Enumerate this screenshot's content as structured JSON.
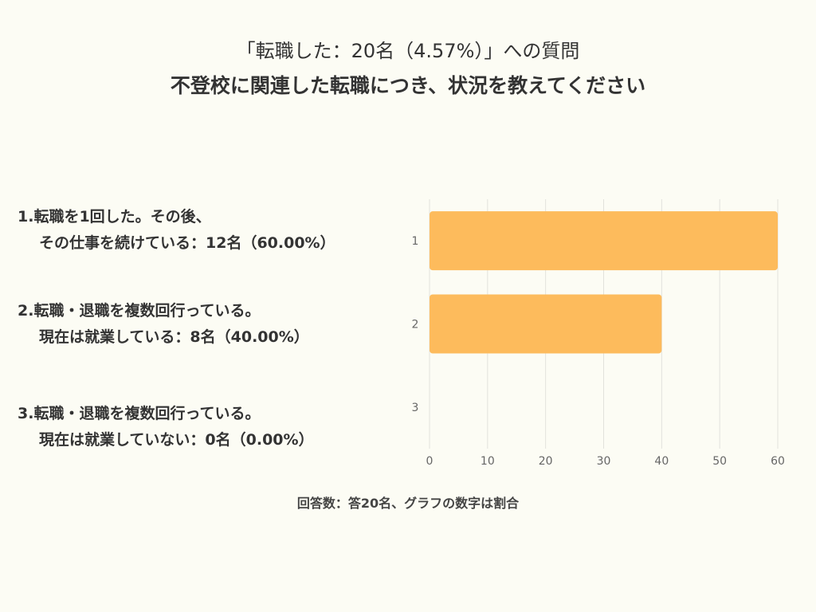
{
  "header": {
    "title": "「転職した：20名（4.57%）」への質問",
    "subtitle": "不登校に関連した転職につき、状況を教えてください"
  },
  "categories": [
    {
      "line1": "1.転職を1回した。その後、",
      "line2": "その仕事を続けている：12名（60.00%）"
    },
    {
      "line1": "2.転職・退職を複数回行っている。",
      "line2": "現在は就業している：8名（40.00%）"
    },
    {
      "line1": "3.転職・退職を複数回行っている。",
      "line2": "現在は就業していない：0名（0.00%）"
    }
  ],
  "footer": "回答数：答20名、グラフの数字は割合",
  "colors": {
    "bar": "#fdbb5c",
    "grid": "#e2e2dc",
    "tick": "#666666"
  },
  "chart_data": {
    "type": "bar",
    "orientation": "horizontal",
    "categories": [
      "1",
      "2",
      "3"
    ],
    "values": [
      60,
      40,
      0
    ],
    "xlim": [
      0,
      60
    ],
    "xticks": [
      0,
      10,
      20,
      30,
      40,
      50,
      60
    ],
    "grid": true
  }
}
